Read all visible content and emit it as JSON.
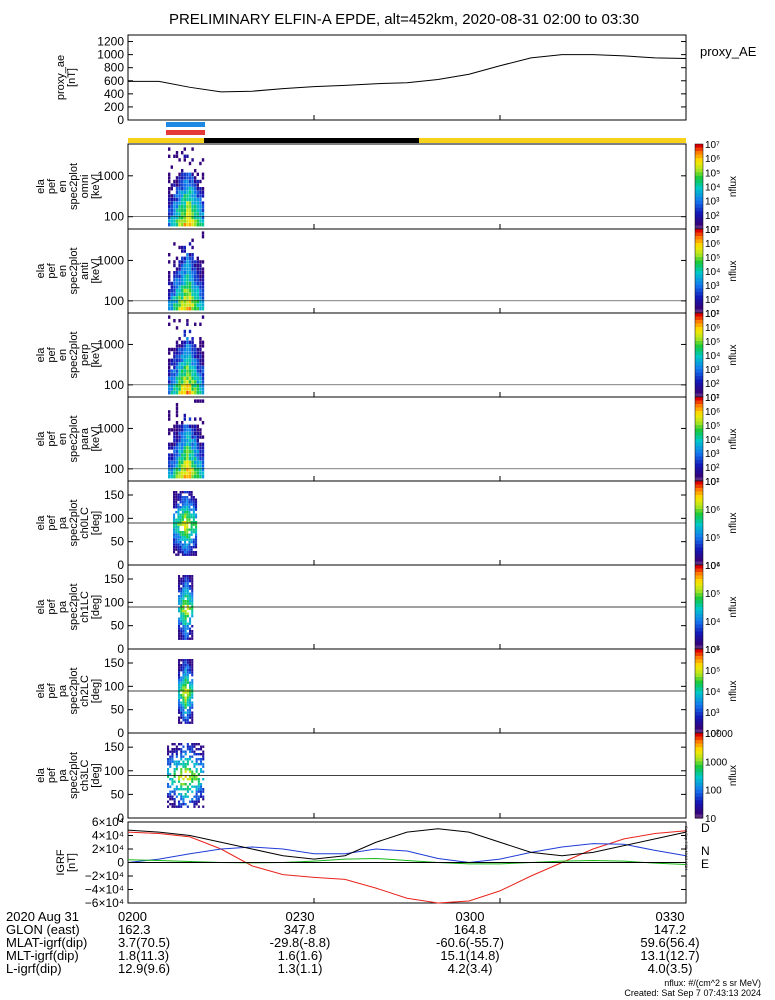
{
  "title": "PRELIMINARY ELFIN-A EPDE, alt=452km, 2020-08-31 02:00 to 03:30",
  "chart_data": [
    {
      "type": "line",
      "name": "proxy_ae",
      "ylabel": [
        "proxy_ae",
        "[nT]"
      ],
      "legend": "proxy_AE",
      "ylim": [
        0,
        1300
      ],
      "yticks": [
        "0",
        "200",
        "400",
        "600",
        "800",
        "1000",
        "1200"
      ],
      "x_minutes": [
        0,
        5,
        10,
        15,
        20,
        25,
        30,
        35,
        40,
        45,
        50,
        55,
        60,
        65,
        70,
        75,
        80,
        85,
        90
      ],
      "values": [
        590,
        590,
        500,
        430,
        440,
        480,
        510,
        530,
        555,
        570,
        620,
        700,
        830,
        950,
        1000,
        1000,
        980,
        950,
        940
      ]
    },
    {
      "type": "heatmap",
      "ylabel": [
        "ela",
        "pef",
        "en",
        "spec2plot",
        "omni",
        "[keV]"
      ],
      "ylog": true,
      "yticks": [
        "100",
        "1000"
      ],
      "colorbar_ticks": [
        "10¹",
        "10²",
        "10³",
        "10⁴",
        "10⁵",
        "10⁶",
        "10⁷"
      ],
      "zlabel": "nflux"
    },
    {
      "type": "heatmap",
      "ylabel": [
        "ela",
        "pef",
        "en",
        "spec2plot",
        "anti",
        "[keV]"
      ],
      "ylog": true,
      "yticks": [
        "100",
        "1000"
      ],
      "colorbar_ticks": [
        "10¹",
        "10²",
        "10³",
        "10⁴",
        "10⁵",
        "10⁶",
        "10⁷"
      ],
      "zlabel": "nflux"
    },
    {
      "type": "heatmap",
      "ylabel": [
        "ela",
        "pef",
        "en",
        "spec2plot",
        "perp",
        "[keV]"
      ],
      "ylog": true,
      "yticks": [
        "100",
        "1000"
      ],
      "colorbar_ticks": [
        "10¹",
        "10²",
        "10³",
        "10⁴",
        "10⁵",
        "10⁶",
        "10⁷"
      ],
      "zlabel": "nflux"
    },
    {
      "type": "heatmap",
      "ylabel": [
        "ela",
        "pef",
        "en",
        "spec2plot",
        "para",
        "[keV]"
      ],
      "ylog": true,
      "yticks": [
        "100",
        "1000"
      ],
      "colorbar_ticks": [
        "10¹",
        "10²",
        "10³",
        "10⁴",
        "10⁵",
        "10⁶",
        "10⁷"
      ],
      "zlabel": "nflux"
    },
    {
      "type": "heatmap",
      "ylabel": [
        "ela",
        "pef",
        "pa",
        "spec2plot",
        "ch0LC",
        "[deg]"
      ],
      "ylim": [
        0,
        180
      ],
      "yticks": [
        "0",
        "50",
        "100",
        "150"
      ],
      "colorbar_ticks": [
        "10⁴",
        "10⁵",
        "10⁶",
        "10⁷"
      ],
      "zlabel": "nflux"
    },
    {
      "type": "heatmap",
      "ylabel": [
        "ela",
        "pef",
        "pa",
        "spec2plot",
        "ch1LC",
        "[deg]"
      ],
      "ylim": [
        0,
        180
      ],
      "yticks": [
        "0",
        "50",
        "100",
        "150"
      ],
      "colorbar_ticks": [
        "10³",
        "10⁴",
        "10⁵",
        "10⁶"
      ],
      "zlabel": "nflux"
    },
    {
      "type": "heatmap",
      "ylabel": [
        "ela",
        "pef",
        "pa",
        "spec2plot",
        "ch2LC",
        "[deg]"
      ],
      "ylim": [
        0,
        180
      ],
      "yticks": [
        "0",
        "50",
        "100",
        "150"
      ],
      "colorbar_ticks": [
        "10²",
        "10³",
        "10⁴",
        "10⁵",
        "10⁶"
      ],
      "zlabel": "nflux"
    },
    {
      "type": "heatmap",
      "ylabel": [
        "ela",
        "pef",
        "pa",
        "spec2plot",
        "ch3LC",
        "[deg]"
      ],
      "ylim": [
        0,
        180
      ],
      "yticks": [
        "0",
        "50",
        "100",
        "150"
      ],
      "colorbar_ticks": [
        "10",
        "100",
        "1000",
        "10000"
      ],
      "zlabel": "nflux"
    },
    {
      "type": "line",
      "name": "IGRF",
      "ylabel": [
        "IGRF",
        "[nT]"
      ],
      "ylim": [
        -60000,
        60000
      ],
      "yticks": [
        "−6×10⁴",
        "−4×10⁴",
        "−2×10⁴",
        "0",
        "2×10⁴",
        "4×10⁴",
        "6×10⁴"
      ],
      "x_minutes": [
        0,
        5,
        10,
        15,
        20,
        25,
        30,
        35,
        40,
        45,
        50,
        55,
        60,
        65,
        70,
        75,
        80,
        85,
        90
      ],
      "series": [
        {
          "name": "D",
          "color": "#e8241c",
          "values": [
            45000,
            43000,
            38000,
            20000,
            -5000,
            -18000,
            -22000,
            -25000,
            -38000,
            -53000,
            -60000,
            -57000,
            -42000,
            -20000,
            0,
            20000,
            35000,
            43000,
            47000
          ]
        },
        {
          "name": "N",
          "color": "#1f3bd6",
          "values": [
            0,
            5000,
            13000,
            20000,
            23000,
            20000,
            13000,
            13000,
            20000,
            17000,
            6000,
            0,
            5000,
            15000,
            23000,
            28000,
            27000,
            18000,
            10000
          ]
        },
        {
          "name": "E",
          "color": "#18b818",
          "values": [
            4000,
            3000,
            1500,
            0,
            -500,
            0,
            2000,
            5000,
            6000,
            3000,
            0,
            -2000,
            -2000,
            0,
            2000,
            3000,
            2000,
            -1000,
            -3000
          ]
        },
        {
          "name": "",
          "color": "#000000",
          "values": [
            48000,
            45000,
            40000,
            30000,
            20000,
            10000,
            5000,
            10000,
            30000,
            45000,
            50000,
            45000,
            30000,
            15000,
            10000,
            15000,
            25000,
            35000,
            45000
          ]
        }
      ]
    }
  ],
  "bars": {
    "sci_blue_color": "#1e88e5",
    "sci_red_color": "#e53935",
    "yellow_color": "#f7d21a",
    "black_color": "#000000"
  },
  "footer": {
    "labels": [
      "2020 Aug 31",
      "GLON (east)",
      "MLAT-igrf(dip)",
      "MLT-igrf(dip)",
      "L-igrf(dip)"
    ],
    "cols": [
      [
        "0200",
        "162.3",
        "3.7(70.5)",
        "1.8(11.3)",
        "12.9(9.6)"
      ],
      [
        "0230",
        "347.8",
        "-29.8(-8.8)",
        "1.6(1.6)",
        "1.3(1.1)"
      ],
      [
        "0300",
        "164.8",
        "-60.6(-55.7)",
        "15.1(14.8)",
        "4.2(3.4)"
      ],
      [
        "0330",
        "147.2",
        "59.6(56.4)",
        "13.1(12.7)",
        "4.0(3.5)"
      ]
    ],
    "units": "nflux: #/(cm^2 s sr MeV)",
    "created": "Created: Sat Sep  7 07:43:13 2024",
    "side_stamp": "Sat Sep  7 00:43:13 2024"
  }
}
